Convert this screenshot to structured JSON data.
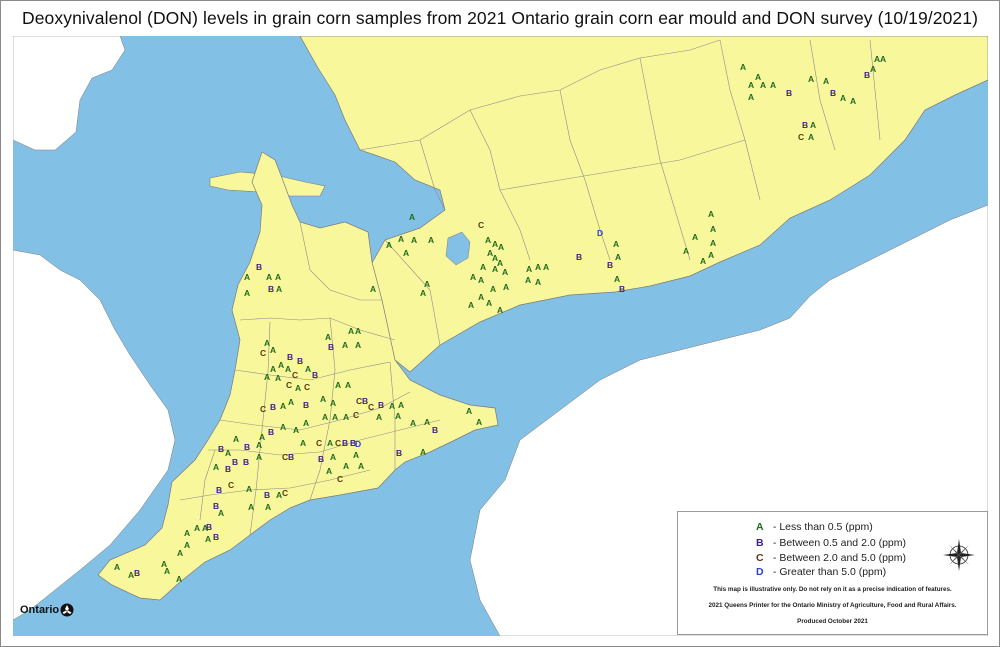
{
  "title": "Deoxynivalenol (DON) levels in grain corn samples from 2021 Ontario grain corn ear mould and DON survey (10/19/2021)",
  "colors": {
    "water": "#83c0e6",
    "land": "#f9f79c",
    "border": "#909090",
    "A": "#1f6b1f",
    "B": "#3c1f8a",
    "C": "#5a3a10",
    "D": "#2a3fd6"
  },
  "legend": {
    "items": [
      {
        "code": "A",
        "label": "- Less than 0.5 (ppm)"
      },
      {
        "code": "B",
        "label": "- Between 0.5 and 2.0 (ppm)"
      },
      {
        "code": "C",
        "label": "- Between 2.0 and 5.0 (ppm)"
      },
      {
        "code": "D",
        "label": "- Greater than 5.0 (ppm)"
      }
    ],
    "disclaimer": "This map is illustrative only.  Do not rely on it as a precise indication of features.",
    "copyright": "2021 Queens Printer for the Ontario Ministry of Agriculture, Food and Rural Affairs.",
    "produced": "Produced October 2021",
    "compass_icon": "compass-rose-icon"
  },
  "logo": {
    "text": "Ontario",
    "icon": "trillium-icon"
  },
  "samples": [
    [
      "A",
      740,
      70
    ],
    [
      "A",
      755,
      80
    ],
    [
      "A",
      770,
      88
    ],
    [
      "A",
      748,
      88
    ],
    [
      "A",
      760,
      88
    ],
    [
      "A",
      748,
      100
    ],
    [
      "B",
      786,
      96
    ],
    [
      "A",
      808,
      82
    ],
    [
      "A",
      823,
      84
    ],
    [
      "B",
      830,
      96
    ],
    [
      "A",
      840,
      101
    ],
    [
      "A",
      850,
      104
    ],
    [
      "B",
      864,
      78
    ],
    [
      "A",
      870,
      72
    ],
    [
      "A",
      874,
      62
    ],
    [
      "A",
      880,
      62
    ],
    [
      "B",
      802,
      128
    ],
    [
      "A",
      810,
      128
    ],
    [
      "C",
      798,
      140
    ],
    [
      "A",
      808,
      140
    ],
    [
      "A",
      708,
      217
    ],
    [
      "A",
      710,
      232
    ],
    [
      "A",
      692,
      240
    ],
    [
      "A",
      710,
      246
    ],
    [
      "A",
      683,
      254
    ],
    [
      "A",
      708,
      258
    ],
    [
      "A",
      700,
      264
    ],
    [
      "D",
      597,
      236
    ],
    [
      "B",
      576,
      260
    ],
    [
      "A",
      613,
      247
    ],
    [
      "A",
      615,
      260
    ],
    [
      "B",
      607,
      268
    ],
    [
      "A",
      614,
      282
    ],
    [
      "B",
      619,
      292
    ],
    [
      "A",
      526,
      272
    ],
    [
      "A",
      535,
      270
    ],
    [
      "A",
      543,
      270
    ],
    [
      "A",
      525,
      283
    ],
    [
      "A",
      535,
      285
    ],
    [
      "C",
      478,
      228
    ],
    [
      "A",
      485,
      243
    ],
    [
      "A",
      492,
      247
    ],
    [
      "A",
      498,
      250
    ],
    [
      "A",
      487,
      256
    ],
    [
      "A",
      492,
      261
    ],
    [
      "A",
      497,
      266
    ],
    [
      "A",
      480,
      270
    ],
    [
      "A",
      492,
      272
    ],
    [
      "A",
      502,
      275
    ],
    [
      "A",
      470,
      280
    ],
    [
      "A",
      478,
      283
    ],
    [
      "A",
      490,
      292
    ],
    [
      "A",
      503,
      290
    ],
    [
      "A",
      478,
      300
    ],
    [
      "A",
      486,
      306
    ],
    [
      "A",
      468,
      308
    ],
    [
      "A",
      497,
      313
    ],
    [
      "A",
      409,
      220
    ],
    [
      "A",
      398,
      242
    ],
    [
      "A",
      411,
      243
    ],
    [
      "A",
      428,
      243
    ],
    [
      "A",
      386,
      248
    ],
    [
      "A",
      403,
      256
    ],
    [
      "A",
      424,
      287
    ],
    [
      "A",
      420,
      296
    ],
    [
      "A",
      370,
      292
    ],
    [
      "B",
      256,
      270
    ],
    [
      "A",
      244,
      280
    ],
    [
      "B",
      268,
      292
    ],
    [
      "A",
      266,
      280
    ],
    [
      "A",
      275,
      280
    ],
    [
      "A",
      276,
      292
    ],
    [
      "A",
      244,
      296
    ],
    [
      "A",
      348,
      334
    ],
    [
      "A",
      355,
      334
    ],
    [
      "A",
      325,
      340
    ],
    [
      "A",
      342,
      348
    ],
    [
      "A",
      355,
      348
    ],
    [
      "B",
      328,
      350
    ],
    [
      "A",
      264,
      346
    ],
    [
      "A",
      270,
      353
    ],
    [
      "B",
      287,
      360
    ],
    [
      "B",
      297,
      364
    ],
    [
      "C",
      260,
      356
    ],
    [
      "A",
      278,
      368
    ],
    [
      "A",
      270,
      372
    ],
    [
      "A",
      285,
      372
    ],
    [
      "C",
      292,
      378
    ],
    [
      "A",
      305,
      372
    ],
    [
      "A",
      264,
      380
    ],
    [
      "A",
      275,
      381
    ],
    [
      "C",
      286,
      388
    ],
    [
      "A",
      295,
      391
    ],
    [
      "C",
      304,
      390
    ],
    [
      "B",
      312,
      378
    ],
    [
      "A",
      335,
      388
    ],
    [
      "A",
      345,
      388
    ],
    [
      "C",
      260,
      412
    ],
    [
      "B",
      270,
      410
    ],
    [
      "A",
      280,
      409
    ],
    [
      "A",
      288,
      405
    ],
    [
      "B",
      303,
      408
    ],
    [
      "A",
      320,
      402
    ],
    [
      "A",
      330,
      406
    ],
    [
      "C",
      356,
      404
    ],
    [
      "B",
      362,
      404
    ],
    [
      "C",
      368,
      410
    ],
    [
      "A",
      389,
      409
    ],
    [
      "A",
      398,
      408
    ],
    [
      "A",
      322,
      420
    ],
    [
      "A",
      332,
      420
    ],
    [
      "A",
      343,
      420
    ],
    [
      "C",
      353,
      418
    ],
    [
      "A",
      303,
      426
    ],
    [
      "A",
      293,
      433
    ],
    [
      "A",
      280,
      430
    ],
    [
      "B",
      268,
      435
    ],
    [
      "A",
      259,
      440
    ],
    [
      "B",
      244,
      450
    ],
    [
      "A",
      256,
      448
    ],
    [
      "A",
      233,
      442
    ],
    [
      "B",
      218,
      452
    ],
    [
      "A",
      225,
      456
    ],
    [
      "B",
      232,
      465
    ],
    [
      "B",
      243,
      465
    ],
    [
      "A",
      256,
      460
    ],
    [
      "C",
      282,
      460
    ],
    [
      "B",
      288,
      460
    ],
    [
      "A",
      300,
      446
    ],
    [
      "C",
      316,
      446
    ],
    [
      "A",
      327,
      446
    ],
    [
      "C",
      335,
      446
    ],
    [
      "B",
      342,
      446
    ],
    [
      "B",
      350,
      446
    ],
    [
      "A",
      330,
      460
    ],
    [
      "B",
      318,
      462
    ],
    [
      "A",
      343,
      469
    ],
    [
      "A",
      358,
      469
    ],
    [
      "B",
      378,
      408
    ],
    [
      "A",
      376,
      420
    ],
    [
      "A",
      395,
      419
    ],
    [
      "B",
      396,
      456
    ],
    [
      "A",
      420,
      455
    ],
    [
      "A",
      424,
      425
    ],
    [
      "B",
      432,
      433
    ],
    [
      "A",
      410,
      426
    ],
    [
      "D",
      355,
      447
    ],
    [
      "A",
      326,
      474
    ],
    [
      "C",
      337,
      482
    ],
    [
      "A",
      353,
      458
    ],
    [
      "B",
      225,
      472
    ],
    [
      "A",
      213,
      470
    ],
    [
      "C",
      228,
      488
    ],
    [
      "B",
      216,
      493
    ],
    [
      "A",
      246,
      492
    ],
    [
      "A",
      276,
      498
    ],
    [
      "C",
      282,
      496
    ],
    [
      "B",
      264,
      498
    ],
    [
      "A",
      265,
      510
    ],
    [
      "A",
      248,
      510
    ],
    [
      "B",
      213,
      509
    ],
    [
      "A",
      218,
      516
    ],
    [
      "B",
      206,
      530
    ],
    [
      "A",
      194,
      531
    ],
    [
      "A",
      202,
      531
    ],
    [
      "A",
      184,
      536
    ],
    [
      "B",
      213,
      540
    ],
    [
      "A",
      205,
      542
    ],
    [
      "A",
      184,
      548
    ],
    [
      "A",
      177,
      556
    ],
    [
      "A",
      114,
      570
    ],
    [
      "A",
      128,
      578
    ],
    [
      "B",
      134,
      576
    ],
    [
      "A",
      161,
      567
    ],
    [
      "A",
      164,
      574
    ],
    [
      "A",
      176,
      582
    ],
    [
      "A",
      466,
      414
    ],
    [
      "A",
      476,
      425
    ]
  ]
}
